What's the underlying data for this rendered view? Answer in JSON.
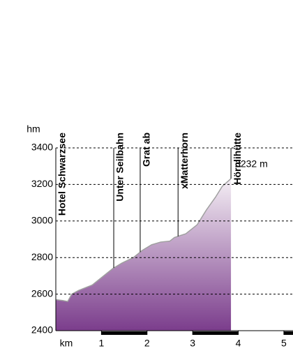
{
  "chart_data": {
    "type": "area",
    "y_label": "hm",
    "x_label": "km",
    "x": [
      0,
      0.15,
      0.26,
      0.35,
      0.5,
      0.8,
      1.0,
      1.25,
      1.45,
      1.7,
      1.9,
      2.1,
      2.3,
      2.5,
      2.6,
      2.85,
      3.1,
      3.3,
      3.5,
      3.65,
      3.84
    ],
    "values": [
      2570,
      2565,
      2560,
      2600,
      2620,
      2650,
      2690,
      2740,
      2770,
      2800,
      2840,
      2870,
      2885,
      2890,
      2910,
      2930,
      2980,
      3060,
      3130,
      3190,
      3232
    ],
    "color": "#7b3d8c",
    "line_color": "#a0a0a0",
    "xlim": [
      0,
      5.2
    ],
    "xticks": [
      1,
      2,
      3,
      4,
      5
    ],
    "ylim": [
      2400,
      3400
    ],
    "yticks": [
      2400,
      2600,
      2800,
      3000,
      3200,
      3400
    ],
    "grid": true,
    "waypoints": [
      {
        "name": "Hotel Schwarzsee",
        "x": 0
      },
      {
        "name": "Unter Seilbahn",
        "x": 1.27
      },
      {
        "name": "Grat ab",
        "x": 1.85
      },
      {
        "name": "xMatterhorn",
        "x": 2.68
      },
      {
        "name": "Hörnlihütte",
        "x": 3.84
      }
    ],
    "annotation": "3232 m",
    "annotation_color": "#ff0000"
  }
}
